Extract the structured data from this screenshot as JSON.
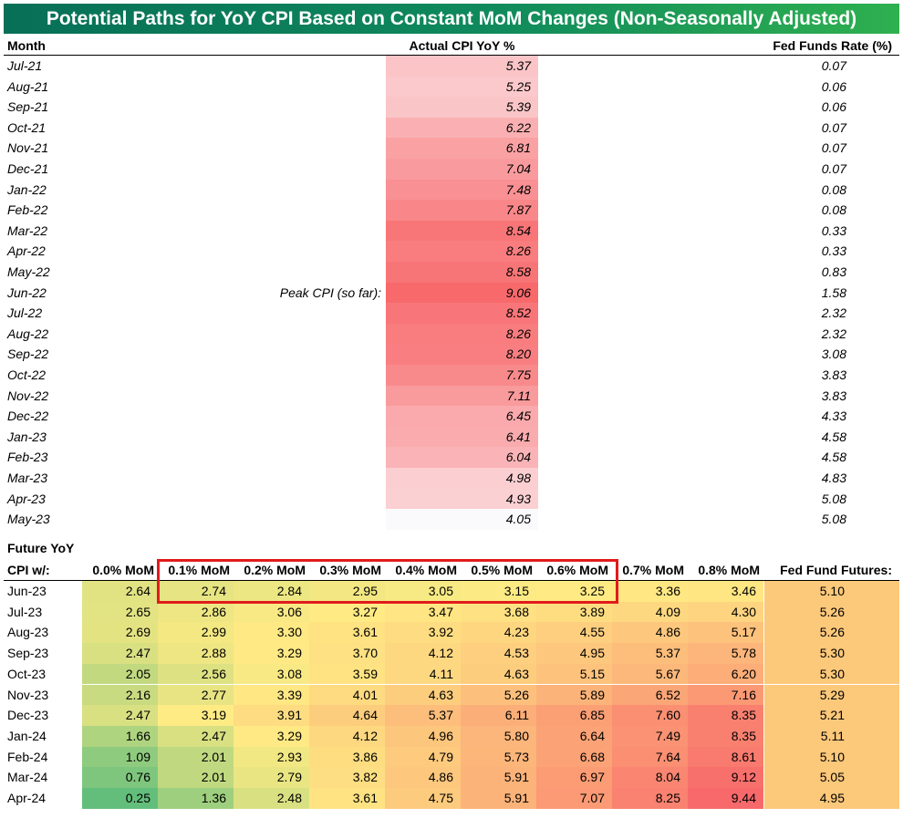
{
  "title": "Potential Paths for YoY CPI Based on Constant MoM Changes (Non-Seasonally Adjusted)",
  "top_table": {
    "headers": {
      "month": "Month",
      "cpi": "Actual CPI YoY %",
      "fed": "Fed Funds Rate (%)"
    },
    "peak_note": "Peak CPI (so far):",
    "rows": [
      {
        "month": "Jul-21",
        "cpi": "5.37",
        "fed": "0.07"
      },
      {
        "month": "Aug-21",
        "cpi": "5.25",
        "fed": "0.06"
      },
      {
        "month": "Sep-21",
        "cpi": "5.39",
        "fed": "0.06"
      },
      {
        "month": "Oct-21",
        "cpi": "6.22",
        "fed": "0.07"
      },
      {
        "month": "Nov-21",
        "cpi": "6.81",
        "fed": "0.07"
      },
      {
        "month": "Dec-21",
        "cpi": "7.04",
        "fed": "0.07"
      },
      {
        "month": "Jan-22",
        "cpi": "7.48",
        "fed": "0.08"
      },
      {
        "month": "Feb-22",
        "cpi": "7.87",
        "fed": "0.08"
      },
      {
        "month": "Mar-22",
        "cpi": "8.54",
        "fed": "0.33"
      },
      {
        "month": "Apr-22",
        "cpi": "8.26",
        "fed": "0.33"
      },
      {
        "month": "May-22",
        "cpi": "8.58",
        "fed": "0.83"
      },
      {
        "month": "Jun-22",
        "cpi": "9.06",
        "fed": "1.58",
        "peak": true
      },
      {
        "month": "Jul-22",
        "cpi": "8.52",
        "fed": "2.32"
      },
      {
        "month": "Aug-22",
        "cpi": "8.26",
        "fed": "2.32"
      },
      {
        "month": "Sep-22",
        "cpi": "8.20",
        "fed": "3.08"
      },
      {
        "month": "Oct-22",
        "cpi": "7.75",
        "fed": "3.83"
      },
      {
        "month": "Nov-22",
        "cpi": "7.11",
        "fed": "3.83"
      },
      {
        "month": "Dec-22",
        "cpi": "6.45",
        "fed": "4.33"
      },
      {
        "month": "Jan-23",
        "cpi": "6.41",
        "fed": "4.58"
      },
      {
        "month": "Feb-23",
        "cpi": "6.04",
        "fed": "4.58"
      },
      {
        "month": "Mar-23",
        "cpi": "4.98",
        "fed": "4.83"
      },
      {
        "month": "Apr-23",
        "cpi": "4.93",
        "fed": "5.08"
      },
      {
        "month": "May-23",
        "cpi": "4.05",
        "fed": "5.08"
      }
    ]
  },
  "bottom_table": {
    "section_label": "Future YoY",
    "row_header": "CPI w/:",
    "columns": [
      "0.0% MoM",
      "0.1% MoM",
      "0.2% MoM",
      "0.3% MoM",
      "0.4% MoM",
      "0.5% MoM",
      "0.6% MoM",
      "0.7% MoM",
      "0.8% MoM"
    ],
    "futures_header": "Fed Fund Futures:",
    "rows": [
      {
        "month": "Jun-23",
        "values": [
          "2.64",
          "2.74",
          "2.84",
          "2.95",
          "3.05",
          "3.15",
          "3.25",
          "3.36",
          "3.46"
        ],
        "futures": "5.10"
      },
      {
        "month": "Jul-23",
        "values": [
          "2.65",
          "2.86",
          "3.06",
          "3.27",
          "3.47",
          "3.68",
          "3.89",
          "4.09",
          "4.30"
        ],
        "futures": "5.26"
      },
      {
        "month": "Aug-23",
        "values": [
          "2.69",
          "2.99",
          "3.30",
          "3.61",
          "3.92",
          "4.23",
          "4.55",
          "4.86",
          "5.17"
        ],
        "futures": "5.26"
      },
      {
        "month": "Sep-23",
        "values": [
          "2.47",
          "2.88",
          "3.29",
          "3.70",
          "4.12",
          "4.53",
          "4.95",
          "5.37",
          "5.78"
        ],
        "futures": "5.30"
      },
      {
        "month": "Oct-23",
        "values": [
          "2.05",
          "2.56",
          "3.08",
          "3.59",
          "4.11",
          "4.63",
          "5.15",
          "5.67",
          "6.20"
        ],
        "futures": "5.30"
      },
      {
        "month": "Nov-23",
        "values": [
          "2.16",
          "2.77",
          "3.39",
          "4.01",
          "4.63",
          "5.26",
          "5.89",
          "6.52",
          "7.16"
        ],
        "futures": "5.29"
      },
      {
        "month": "Dec-23",
        "values": [
          "2.47",
          "3.19",
          "3.91",
          "4.64",
          "5.37",
          "6.11",
          "6.85",
          "7.60",
          "8.35"
        ],
        "futures": "5.21"
      },
      {
        "month": "Jan-24",
        "values": [
          "1.66",
          "2.47",
          "3.29",
          "4.12",
          "4.96",
          "5.80",
          "6.64",
          "7.49",
          "8.35"
        ],
        "futures": "5.11"
      },
      {
        "month": "Feb-24",
        "values": [
          "1.09",
          "2.01",
          "2.93",
          "3.86",
          "4.79",
          "5.73",
          "6.68",
          "7.64",
          "8.61"
        ],
        "futures": "5.10"
      },
      {
        "month": "Mar-24",
        "values": [
          "0.76",
          "2.01",
          "2.79",
          "3.82",
          "4.86",
          "5.91",
          "6.97",
          "8.04",
          "9.12"
        ],
        "futures": "5.05"
      },
      {
        "month": "Apr-24",
        "values": [
          "0.25",
          "1.36",
          "2.48",
          "3.61",
          "4.75",
          "5.91",
          "7.07",
          "8.25",
          "9.44"
        ],
        "futures": "4.95"
      }
    ]
  },
  "colors": {
    "title_bg_start": "#076f57",
    "title_bg_end": "#2fb04f",
    "cpi_low": "#fcfcff",
    "cpi_high": "#f8696b",
    "scale_green": "#63be7b",
    "scale_yellow": "#ffeb84",
    "scale_red": "#f8696b",
    "futures_bg": "#fcc87a",
    "highlight_border": "#e11b1b"
  }
}
